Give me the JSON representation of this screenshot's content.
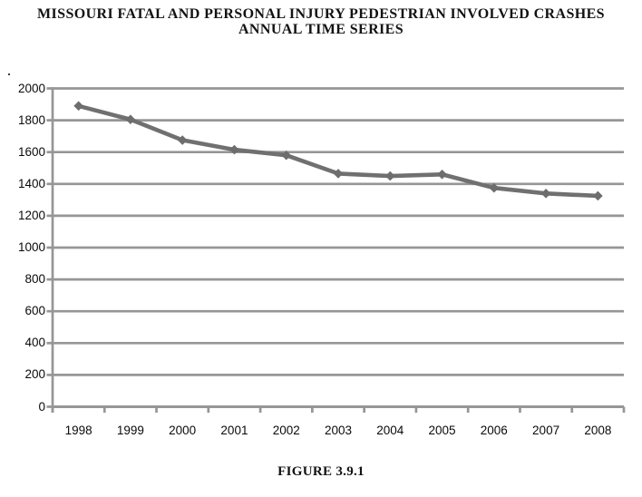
{
  "page": {
    "background": "#ffffff"
  },
  "chart_data": {
    "type": "line",
    "title": "MISSOURI FATAL AND PERSONAL INJURY PEDESTRIAN INVOLVED CRASHES",
    "subtitle": "ANNUAL TIME SERIES",
    "categories": [
      "1998",
      "1999",
      "2000",
      "2001",
      "2002",
      "2003",
      "2004",
      "2005",
      "2006",
      "2007",
      "2008"
    ],
    "values": [
      1890,
      1805,
      1675,
      1615,
      1580,
      1465,
      1450,
      1460,
      1375,
      1340,
      1325
    ],
    "series_name": "Pedestrian involved crashes",
    "ylim": [
      0,
      2000
    ],
    "ytick_step": 200,
    "ytick_labels": [
      "0",
      "200",
      "400",
      "600",
      "800",
      "1000",
      "1200",
      "1400",
      "1600",
      "1800",
      "2000"
    ],
    "xlabel": "",
    "ylabel": "",
    "grid": "horizontal",
    "legend": "none",
    "marker": "diamond"
  },
  "figure_caption": "FIGURE 3.9.1",
  "colors": {
    "series_line": "#707070",
    "marker_fill": "#6d6d6d",
    "gridline": "#969696",
    "axis": "#969696",
    "label_text": "#0a0a0a",
    "title_text": "#121212"
  }
}
